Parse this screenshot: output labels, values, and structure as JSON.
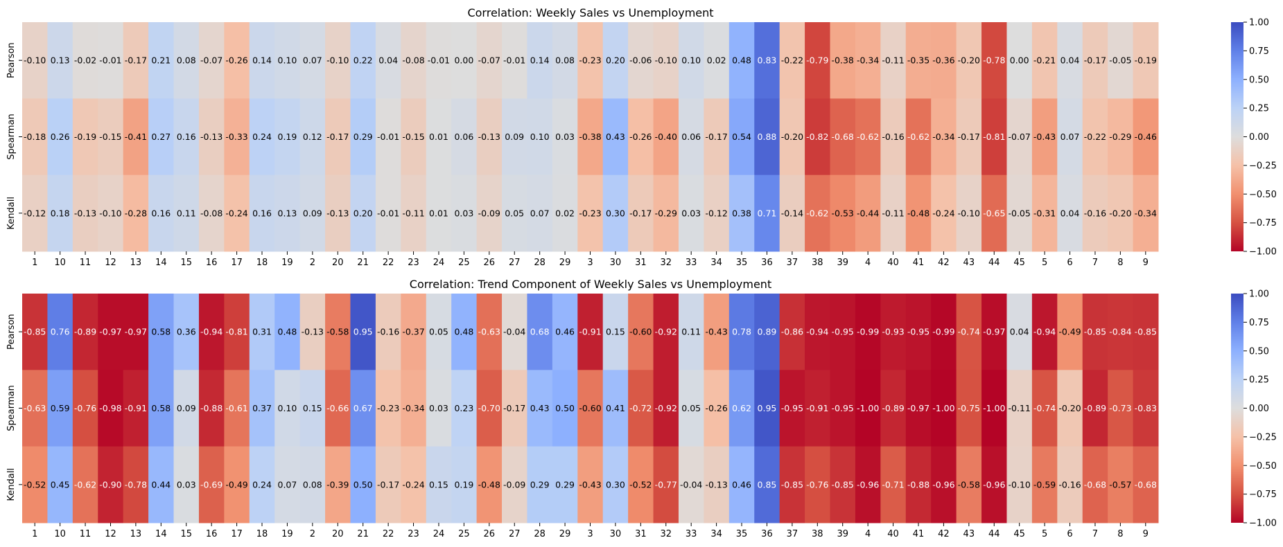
{
  "chart_data": [
    {
      "type": "heatmap",
      "title": "Correlation: Weekly Sales vs Unemployment",
      "rows": [
        "Pearson",
        "Spearman",
        "Kendall"
      ],
      "columns": [
        "1",
        "10",
        "11",
        "12",
        "13",
        "14",
        "15",
        "16",
        "17",
        "18",
        "19",
        "2",
        "20",
        "21",
        "22",
        "23",
        "24",
        "25",
        "26",
        "27",
        "28",
        "29",
        "3",
        "30",
        "31",
        "32",
        "33",
        "34",
        "35",
        "36",
        "37",
        "38",
        "39",
        "4",
        "40",
        "41",
        "42",
        "43",
        "44",
        "45",
        "5",
        "6",
        "7",
        "8",
        "9"
      ],
      "values": [
        [
          -0.1,
          0.13,
          -0.02,
          -0.01,
          -0.17,
          0.21,
          0.08,
          -0.07,
          -0.26,
          0.14,
          0.1,
          0.07,
          -0.1,
          0.22,
          0.04,
          -0.08,
          -0.01,
          -0.0,
          -0.07,
          -0.01,
          0.14,
          0.08,
          -0.23,
          0.2,
          -0.06,
          -0.1,
          0.1,
          0.02,
          0.48,
          0.83,
          -0.22,
          -0.79,
          -0.38,
          -0.34,
          -0.11,
          -0.35,
          -0.36,
          -0.2,
          -0.78,
          -0.0,
          -0.21,
          0.04,
          -0.17,
          -0.05,
          -0.19
        ],
        [
          -0.18,
          0.26,
          -0.19,
          -0.15,
          -0.41,
          0.27,
          0.16,
          -0.13,
          -0.33,
          0.24,
          0.19,
          0.12,
          -0.17,
          0.29,
          -0.01,
          -0.15,
          0.01,
          0.06,
          -0.13,
          0.09,
          0.1,
          0.03,
          -0.38,
          0.43,
          -0.26,
          -0.4,
          0.06,
          -0.17,
          0.54,
          0.88,
          -0.2,
          -0.82,
          -0.68,
          -0.62,
          -0.16,
          -0.62,
          -0.34,
          -0.17,
          -0.81,
          -0.07,
          -0.43,
          0.07,
          -0.22,
          -0.29,
          -0.46
        ],
        [
          -0.12,
          0.18,
          -0.13,
          -0.1,
          -0.28,
          0.16,
          0.11,
          -0.08,
          -0.24,
          0.16,
          0.13,
          0.09,
          -0.13,
          0.2,
          -0.01,
          -0.11,
          0.01,
          0.03,
          -0.09,
          0.05,
          0.07,
          0.02,
          -0.23,
          0.3,
          -0.17,
          -0.29,
          0.03,
          -0.12,
          0.38,
          0.71,
          -0.14,
          -0.62,
          -0.53,
          -0.44,
          -0.11,
          -0.48,
          -0.24,
          -0.1,
          -0.65,
          -0.05,
          -0.31,
          0.04,
          -0.16,
          -0.2,
          -0.34
        ]
      ],
      "colormap": "coolwarm_r",
      "vmin": -1.0,
      "vmax": 1.0,
      "colorbar_ticks": [
        "1.00",
        "0.75",
        "0.50",
        "0.25",
        "0.00",
        "−0.25",
        "−0.50",
        "−0.75",
        "−1.00"
      ],
      "colorbar_tick_values": [
        1.0,
        0.75,
        0.5,
        0.25,
        0.0,
        -0.25,
        -0.5,
        -0.75,
        -1.0
      ]
    },
    {
      "type": "heatmap",
      "title": "Correlation: Trend Component of Weekly Sales vs Unemployment",
      "rows": [
        "Pearson",
        "Spearman",
        "Kendall"
      ],
      "columns": [
        "1",
        "10",
        "11",
        "12",
        "13",
        "14",
        "15",
        "16",
        "17",
        "18",
        "19",
        "2",
        "20",
        "21",
        "22",
        "23",
        "24",
        "25",
        "26",
        "27",
        "28",
        "29",
        "3",
        "30",
        "31",
        "32",
        "33",
        "34",
        "35",
        "36",
        "37",
        "38",
        "39",
        "4",
        "40",
        "41",
        "42",
        "43",
        "44",
        "45",
        "5",
        "6",
        "7",
        "8",
        "9"
      ],
      "values": [
        [
          -0.85,
          0.76,
          -0.89,
          -0.97,
          -0.97,
          0.58,
          0.36,
          -0.94,
          -0.81,
          0.31,
          0.48,
          -0.13,
          -0.58,
          0.95,
          -0.16,
          -0.37,
          0.05,
          0.48,
          -0.63,
          -0.04,
          0.68,
          0.46,
          -0.91,
          0.15,
          -0.6,
          -0.92,
          0.11,
          -0.43,
          0.78,
          0.89,
          -0.86,
          -0.94,
          -0.95,
          -0.99,
          -0.93,
          -0.95,
          -0.99,
          -0.74,
          -0.97,
          0.04,
          -0.94,
          -0.49,
          -0.85,
          -0.84,
          -0.85
        ],
        [
          -0.63,
          0.59,
          -0.76,
          -0.98,
          -0.91,
          0.58,
          0.09,
          -0.88,
          -0.61,
          0.37,
          0.1,
          0.15,
          -0.66,
          0.67,
          -0.23,
          -0.34,
          0.03,
          0.23,
          -0.7,
          -0.17,
          0.43,
          0.5,
          -0.6,
          0.41,
          -0.72,
          -0.92,
          0.05,
          -0.26,
          0.62,
          0.95,
          -0.95,
          -0.91,
          -0.95,
          -1.0,
          -0.89,
          -0.97,
          -1.0,
          -0.75,
          -1.0,
          -0.11,
          -0.74,
          -0.2,
          -0.89,
          -0.73,
          -0.83
        ],
        [
          -0.52,
          0.45,
          -0.62,
          -0.9,
          -0.78,
          0.44,
          0.03,
          -0.69,
          -0.49,
          0.24,
          0.07,
          0.08,
          -0.39,
          0.5,
          -0.17,
          -0.24,
          0.15,
          0.19,
          -0.48,
          -0.09,
          0.29,
          0.29,
          -0.43,
          0.3,
          -0.52,
          -0.77,
          -0.04,
          -0.13,
          0.46,
          0.85,
          -0.85,
          -0.76,
          -0.85,
          -0.96,
          -0.71,
          -0.88,
          -0.96,
          -0.58,
          -0.96,
          -0.1,
          -0.59,
          -0.16,
          -0.68,
          -0.57,
          -0.68
        ]
      ],
      "colormap": "coolwarm_r",
      "vmin": -1.0,
      "vmax": 1.0,
      "colorbar_ticks": [
        "1.00",
        "0.75",
        "0.50",
        "0.25",
        "0.00",
        "−0.25",
        "−0.50",
        "−0.75",
        "−1.00"
      ],
      "colorbar_tick_values": [
        1.0,
        0.75,
        0.5,
        0.25,
        0.0,
        -0.25,
        -0.5,
        -0.75,
        -1.0
      ]
    }
  ]
}
